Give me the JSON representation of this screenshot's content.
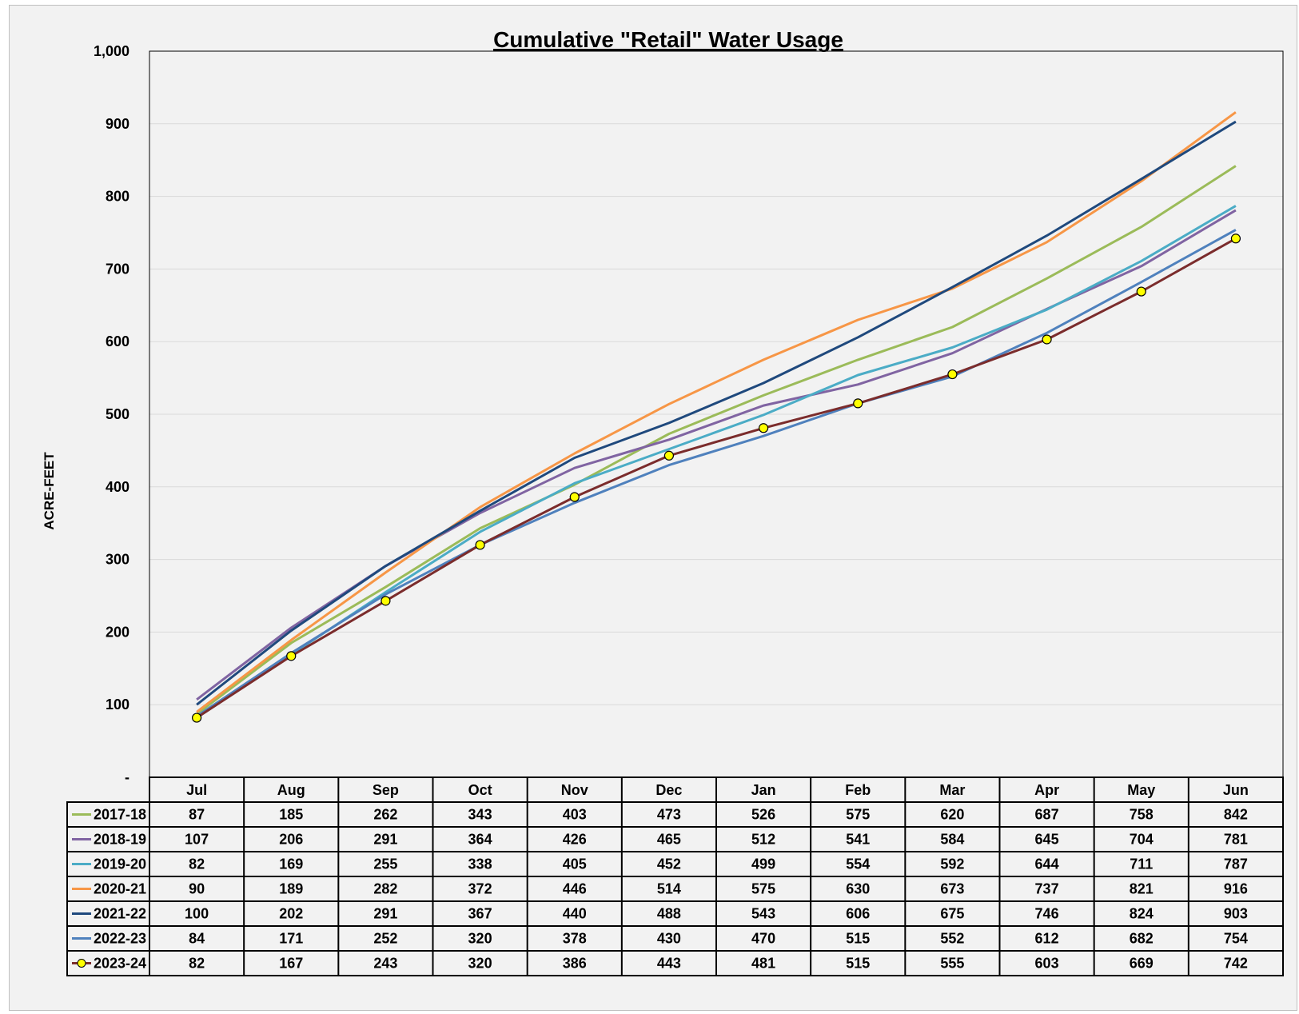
{
  "chart_data": {
    "type": "line",
    "title": "Cumulative \"Retail\" Water Usage",
    "ylabel": "ACRE-FEET",
    "xlabel": "",
    "ylim": [
      0,
      1000
    ],
    "y_ticks": [
      "-",
      "100",
      "200",
      "300",
      "400",
      "500",
      "600",
      "700",
      "800",
      "900",
      "1,000"
    ],
    "grid": true,
    "legend": "data-table-below",
    "categories": [
      "Jul",
      "Aug",
      "Sep",
      "Oct",
      "Nov",
      "Dec",
      "Jan",
      "Feb",
      "Mar",
      "Apr",
      "May",
      "Jun"
    ],
    "series": [
      {
        "name": "2017-18",
        "color": "#9bbb59",
        "marker": "none",
        "values": [
          87,
          185,
          262,
          343,
          403,
          473,
          526,
          575,
          620,
          687,
          758,
          842
        ]
      },
      {
        "name": "2018-19",
        "color": "#8064a2",
        "marker": "none",
        "values": [
          107,
          206,
          291,
          364,
          426,
          465,
          512,
          541,
          584,
          645,
          704,
          781
        ]
      },
      {
        "name": "2019-20",
        "color": "#4bacc6",
        "marker": "none",
        "values": [
          82,
          169,
          255,
          338,
          405,
          452,
          499,
          554,
          592,
          644,
          711,
          787
        ]
      },
      {
        "name": "2020-21",
        "color": "#f79646",
        "marker": "none",
        "values": [
          90,
          189,
          282,
          372,
          446,
          514,
          575,
          630,
          673,
          737,
          821,
          916
        ]
      },
      {
        "name": "2021-22",
        "color": "#1f497d",
        "marker": "none",
        "values": [
          100,
          202,
          291,
          367,
          440,
          488,
          543,
          606,
          675,
          746,
          824,
          903
        ]
      },
      {
        "name": "2022-23",
        "color": "#4f81bd",
        "marker": "none",
        "values": [
          84,
          171,
          252,
          320,
          378,
          430,
          470,
          515,
          552,
          612,
          682,
          754
        ]
      },
      {
        "name": "2023-24",
        "color": "#7b2c2c",
        "marker": "circle",
        "marker_fill": "#ffff00",
        "values": [
          82,
          167,
          243,
          320,
          386,
          443,
          481,
          515,
          555,
          603,
          669,
          742
        ]
      }
    ]
  }
}
